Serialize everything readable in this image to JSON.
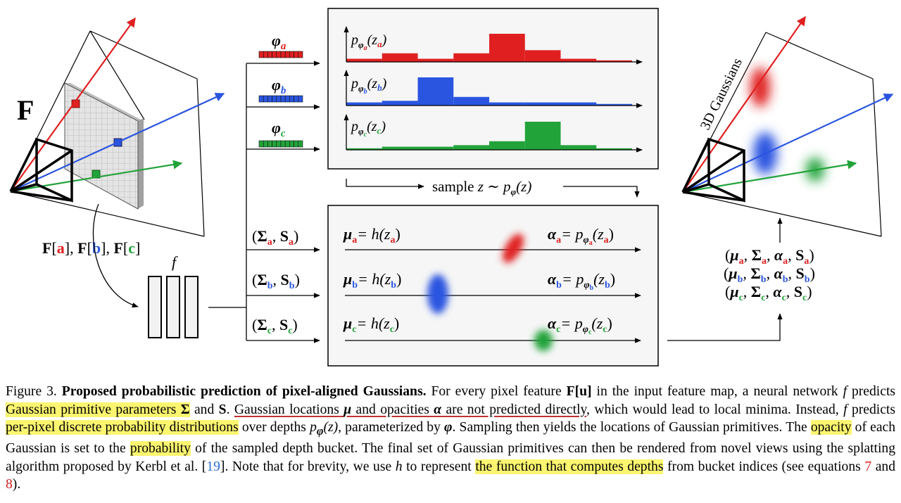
{
  "figure": {
    "F_label": "F",
    "F_indexing": {
      "F": "F",
      "a": "a",
      "b": "b",
      "c": "c"
    },
    "network_label": "f",
    "phi_labels": {
      "phi": "φ",
      "a": "a",
      "b": "b",
      "c": "c"
    },
    "hist_labels": {
      "p": "p",
      "phi": "φ",
      "z": "z",
      "a": "a",
      "b": "b",
      "c": "c"
    },
    "sample_label_text": "sample",
    "sample_formula": "z ∼ p",
    "cov_labels": {
      "Sigma": "Σ",
      "S": "S",
      "a": "a",
      "b": "b",
      "c": "c"
    },
    "mu_label": "μ",
    "h_formula": "= h(z",
    "alpha_label": "α",
    "alpha_formula": "= p",
    "gauss_3d_label": "3D Gaussians",
    "params_lines": {
      "mu": "μ",
      "Sigma": "Σ",
      "alpha": "α",
      "S": "S",
      "a": "a",
      "b": "b",
      "c": "c"
    }
  },
  "chart_data": {
    "type": "bar",
    "series": [
      {
        "name": "p_phi_a(z_a)",
        "values": [
          0.08,
          0.22,
          0.08,
          0.22,
          0.72,
          0.3,
          0.08,
          0.04
        ]
      },
      {
        "name": "p_phi_b(z_b)",
        "values": [
          0.08,
          0.12,
          0.72,
          0.22,
          0.08,
          0.08,
          0.08,
          0.04
        ]
      },
      {
        "name": "p_phi_c(z_c)",
        "values": [
          0.04,
          0.08,
          0.08,
          0.12,
          0.22,
          0.72,
          0.12,
          0.04
        ]
      }
    ],
    "colors": [
      "#e02020",
      "#2a55e0",
      "#22a33a"
    ]
  },
  "caption": {
    "figure_num": "Figure 3.",
    "title": "Proposed probabilistic prediction of pixel-aligned Gaussians.",
    "t1": "For every pixel feature",
    "F": "F",
    "u": "[u]",
    "t2": "in the input feature map, a neural network",
    "f": "f",
    "t3": "predicts",
    "h1": "Gaussian primitive parameters",
    "Sigma": "Σ",
    "t4": "and",
    "S": "S",
    "t5": ".",
    "ul1": "Gaussian locations",
    "mu": "μ",
    "ul2": "and opacities",
    "alpha": "α",
    "ul3": "are not predicted directly",
    "t6": ", which would lead to local minima. Instead,",
    "f2": "f",
    "t7": "predicts",
    "h2": "per-pixel discrete probability distributions",
    "t8": "over depths",
    "p": "p",
    "phi": "φ",
    "z": "(z)",
    "t9": ", parameterized by",
    "phi2": "φ",
    "t10": ". Sampling then yields the locations of Gaussian primitives. The",
    "h3": "opacity",
    "t11": "of each Gaussian is set to the",
    "h4": "probability",
    "t12": "of the sampled depth bucket. The final set of Gaussian primitives can then be rendered from novel views using the splatting algorithm proposed by Kerbl et al. [",
    "ref19": "19",
    "t13": "]. Note that for brevity, we use",
    "h": "h",
    "t14": "to represent",
    "h5": "the function that computes depths",
    "t15": "from bucket indices (see equations",
    "ref7": "7",
    "t16": "and",
    "ref8": "8",
    "t17": ")."
  }
}
